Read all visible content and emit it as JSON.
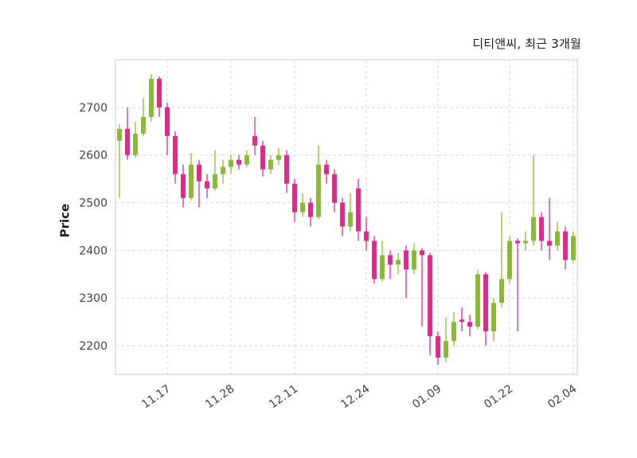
{
  "header": {
    "title": "디티앤씨, 최근 3개월"
  },
  "chart_data": {
    "type": "candlestick",
    "title": "디티앤씨, 최근 3개월",
    "ylabel": "Price",
    "ylim": [
      2140,
      2800
    ],
    "yticks": [
      2200,
      2300,
      2400,
      2500,
      2600,
      2700
    ],
    "xtick_labels": [
      "11.17",
      "11.28",
      "12.11",
      "12.24",
      "01.09",
      "01.22",
      "02.04"
    ],
    "xtick_indices": [
      6,
      14,
      22,
      31,
      40,
      49,
      57
    ],
    "grid": "dashed",
    "legend": "none",
    "colors": {
      "up": "#8CB93C",
      "down": "#DE2C8A",
      "grid": "#d9d9d9",
      "frame": "#cccccc",
      "axis_text": "#444444",
      "title_text": "#1f1f1f"
    },
    "candles_format": [
      "open",
      "high",
      "low",
      "close"
    ],
    "candles": [
      [
        2630,
        2665,
        2510,
        2655
      ],
      [
        2655,
        2700,
        2590,
        2600
      ],
      [
        2600,
        2670,
        2595,
        2645
      ],
      [
        2645,
        2720,
        2640,
        2680
      ],
      [
        2680,
        2770,
        2670,
        2760
      ],
      [
        2760,
        2765,
        2680,
        2700
      ],
      [
        2700,
        2710,
        2600,
        2640
      ],
      [
        2640,
        2650,
        2540,
        2560
      ],
      [
        2560,
        2580,
        2490,
        2510
      ],
      [
        2510,
        2605,
        2505,
        2580
      ],
      [
        2580,
        2590,
        2490,
        2545
      ],
      [
        2545,
        2560,
        2510,
        2530
      ],
      [
        2530,
        2610,
        2525,
        2560
      ],
      [
        2560,
        2590,
        2540,
        2575
      ],
      [
        2575,
        2600,
        2560,
        2590
      ],
      [
        2590,
        2600,
        2570,
        2580
      ],
      [
        2580,
        2610,
        2575,
        2600
      ],
      [
        2640,
        2680,
        2600,
        2620
      ],
      [
        2620,
        2630,
        2555,
        2570
      ],
      [
        2570,
        2600,
        2560,
        2590
      ],
      [
        2590,
        2615,
        2580,
        2600
      ],
      [
        2600,
        2610,
        2520,
        2540
      ],
      [
        2540,
        2550,
        2460,
        2480
      ],
      [
        2480,
        2520,
        2470,
        2500
      ],
      [
        2500,
        2510,
        2450,
        2470
      ],
      [
        2470,
        2620,
        2465,
        2580
      ],
      [
        2580,
        2590,
        2540,
        2560
      ],
      [
        2560,
        2570,
        2480,
        2500
      ],
      [
        2500,
        2510,
        2430,
        2450
      ],
      [
        2450,
        2520,
        2440,
        2480
      ],
      [
        2530,
        2550,
        2420,
        2440
      ],
      [
        2440,
        2470,
        2400,
        2420
      ],
      [
        2420,
        2430,
        2330,
        2340
      ],
      [
        2340,
        2420,
        2335,
        2390
      ],
      [
        2390,
        2400,
        2340,
        2370
      ],
      [
        2370,
        2395,
        2350,
        2380
      ],
      [
        2400,
        2410,
        2300,
        2360
      ],
      [
        2360,
        2415,
        2350,
        2400
      ],
      [
        2400,
        2405,
        2240,
        2390
      ],
      [
        2390,
        2395,
        2180,
        2220
      ],
      [
        2220,
        2230,
        2160,
        2175
      ],
      [
        2175,
        2260,
        2165,
        2210
      ],
      [
        2210,
        2270,
        2200,
        2250
      ],
      [
        2255,
        2280,
        2230,
        2250
      ],
      [
        2250,
        2265,
        2220,
        2240
      ],
      [
        2240,
        2360,
        2235,
        2350
      ],
      [
        2350,
        2355,
        2200,
        2230
      ],
      [
        2230,
        2300,
        2210,
        2290
      ],
      [
        2290,
        2480,
        2280,
        2340
      ],
      [
        2340,
        2430,
        2330,
        2420
      ],
      [
        2420,
        2425,
        2230,
        2415
      ],
      [
        2415,
        2440,
        2400,
        2420
      ],
      [
        2420,
        2600,
        2410,
        2470
      ],
      [
        2470,
        2480,
        2400,
        2420
      ],
      [
        2420,
        2510,
        2380,
        2410
      ],
      [
        2410,
        2460,
        2400,
        2440
      ],
      [
        2440,
        2450,
        2360,
        2380
      ],
      [
        2380,
        2440,
        2375,
        2430
      ]
    ]
  }
}
